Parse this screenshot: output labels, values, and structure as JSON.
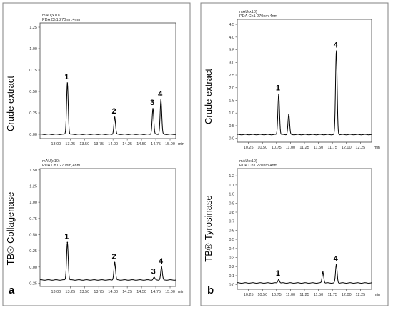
{
  "panels": [
    {
      "label": "a",
      "color_border": "#7a7a7a"
    },
    {
      "label": "b",
      "color_border": "#7a7a7a"
    }
  ],
  "chart_data": [
    {
      "type": "line",
      "panel": "a",
      "position": "top",
      "sample_label": "Crude extract",
      "header_line1": "mAU(x10)",
      "header_line2": "PDA Ch1 270nm,4nm",
      "xunit": "min",
      "xlim": [
        12.72,
        15.1
      ],
      "ylim": [
        -0.05,
        1.3
      ],
      "xticks": [
        "13.00",
        "13.25",
        "13.50",
        "13.75",
        "14.00",
        "14.25",
        "14.50",
        "14.75",
        "15.00"
      ],
      "yticks": [
        "1.25",
        "1.00",
        "0.75",
        "0.50",
        "0.25",
        "0.00"
      ],
      "baseline": 0.0,
      "peaks": [
        {
          "label": "1",
          "x": 13.2,
          "height": 0.6
        },
        {
          "label": "2",
          "x": 14.03,
          "height": 0.2
        },
        {
          "label": "3",
          "x": 14.7,
          "height": 0.3
        },
        {
          "label": "4",
          "x": 14.84,
          "height": 0.4
        }
      ]
    },
    {
      "type": "line",
      "panel": "a",
      "position": "bottom",
      "sample_label": "TB®-Collagenase",
      "header_line1": "mAU(x10)",
      "header_line2": "PDA Ch1 270nm,4nm",
      "xunit": "min",
      "xlim": [
        12.72,
        15.1
      ],
      "ylim": [
        -0.3,
        1.52
      ],
      "xticks": [
        "13.00",
        "13.25",
        "13.50",
        "13.75",
        "14.00",
        "14.25",
        "14.50",
        "14.75",
        "15.00"
      ],
      "yticks": [
        "1.50",
        "1.25",
        "1.00",
        "0.75",
        "0.50",
        "0.25",
        "0.00",
        "-0.25"
      ],
      "baseline": -0.2,
      "peaks": [
        {
          "label": "1",
          "x": 13.2,
          "height": 0.58
        },
        {
          "label": "2",
          "x": 14.03,
          "height": 0.27
        },
        {
          "label": "3",
          "x": 14.72,
          "height": 0.04
        },
        {
          "label": "4",
          "x": 14.85,
          "height": 0.2
        }
      ]
    },
    {
      "type": "line",
      "panel": "b",
      "position": "top",
      "sample_label": "Crude extract",
      "header_line1": "mAU(x10)",
      "header_line2": "PDA Ch1 270nm,4nm",
      "xunit": "min",
      "xlim": [
        10.05,
        12.45
      ],
      "ylim": [
        -0.15,
        4.7
      ],
      "xticks": [
        "10.25",
        "10.50",
        "10.75",
        "11.00",
        "11.25",
        "11.50",
        "11.75",
        "12.00",
        "12.25"
      ],
      "yticks": [
        "4.5",
        "4.0",
        "3.5",
        "3.0",
        "2.5",
        "2.0",
        "1.5",
        "1.0",
        "0.5",
        "0.0"
      ],
      "baseline": 0.15,
      "peaks": [
        {
          "label": "1",
          "x": 10.79,
          "height": 1.6
        },
        {
          "label": "",
          "x": 10.97,
          "height": 0.8
        },
        {
          "label": "4",
          "x": 11.82,
          "height": 3.3
        }
      ]
    },
    {
      "type": "line",
      "panel": "b",
      "position": "bottom",
      "sample_label": "TB®-Tyrosinase",
      "header_line1": "mAU(x10)",
      "header_line2": "PDA Ch1 270nm,4nm",
      "xunit": "min",
      "xlim": [
        10.05,
        12.45
      ],
      "ylim": [
        -0.05,
        1.28
      ],
      "xticks": [
        "10.25",
        "10.50",
        "10.75",
        "11.00",
        "11.25",
        "11.50",
        "11.75",
        "12.00",
        "12.25"
      ],
      "yticks": [
        "1.2",
        "1.1",
        "1.0",
        "0.9",
        "0.8",
        "0.7",
        "0.6",
        "0.5",
        "0.4",
        "0.3",
        "0.2",
        "0.1",
        "0.0"
      ],
      "baseline": 0.02,
      "peaks": [
        {
          "label": "1",
          "x": 10.79,
          "height": 0.04
        },
        {
          "label": "",
          "x": 11.58,
          "height": 0.12
        },
        {
          "label": "4",
          "x": 11.82,
          "height": 0.2
        }
      ]
    }
  ]
}
